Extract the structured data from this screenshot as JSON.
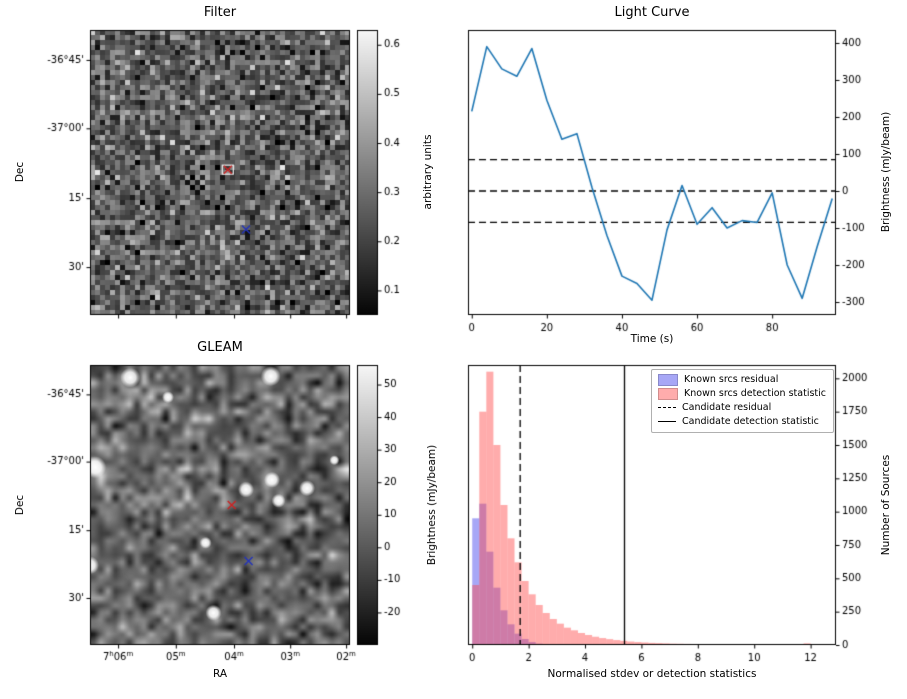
{
  "figure": {
    "background": "#ffffff"
  },
  "chart_data": [
    {
      "id": "filter",
      "type": "heatmap",
      "title": "Filter",
      "ylabel": "Dec",
      "yticks": {
        "labels": [
          "-36°45'",
          "-37°00'",
          "15'",
          "30'"
        ],
        "fractions": [
          0.105,
          0.345,
          0.59,
          0.832
        ]
      },
      "xticks": {
        "labels": [
          "",
          "",
          "",
          "",
          ""
        ],
        "fractions": [
          0.108,
          0.33,
          0.554,
          0.77,
          0.985
        ]
      },
      "value_range": [
        0.05,
        0.63
      ],
      "noise": {
        "seed": 7,
        "cells": 52,
        "mean": 0.27,
        "sd": 0.09,
        "smooth": false
      },
      "colorbar": {
        "label": "arbitrary units",
        "ticks": [
          0.1,
          0.2,
          0.3,
          0.4,
          0.5,
          0.6
        ]
      },
      "markers": [
        {
          "shape": "x",
          "color": "#cc2222",
          "x": 0.53,
          "y": 0.49,
          "boxed": true
        },
        {
          "shape": "x",
          "color": "#2233bb",
          "x": 0.6,
          "y": 0.7,
          "boxed": false
        }
      ]
    },
    {
      "id": "light_curve",
      "type": "line",
      "title": "Light Curve",
      "xlabel": "Time (s)",
      "ylabel": "Brightness (mJy/beam)",
      "line_color": "#1f77b4",
      "x": [
        0,
        4,
        8,
        12,
        16,
        20,
        24,
        28,
        32,
        36,
        40,
        44,
        48,
        52,
        56,
        60,
        64,
        68,
        72,
        76,
        80,
        84,
        88,
        92,
        96
      ],
      "y": [
        215,
        390,
        330,
        310,
        385,
        245,
        140,
        155,
        10,
        -120,
        -230,
        -250,
        -295,
        -105,
        15,
        -90,
        -45,
        -100,
        -80,
        -85,
        -5,
        -200,
        -290,
        -150,
        -20
      ],
      "hlines": {
        "style": "dashed",
        "values": [
          85,
          0,
          -85
        ]
      },
      "xlim": [
        -1,
        97
      ],
      "ylim": [
        -335,
        435
      ],
      "xticks": [
        0,
        20,
        40,
        60,
        80
      ],
      "yticks": [
        400,
        300,
        200,
        100,
        0,
        -100,
        -200,
        -300
      ]
    },
    {
      "id": "gleam",
      "type": "heatmap",
      "title": "GLEAM",
      "xlabel": "RA",
      "ylabel": "Dec",
      "yticks": {
        "labels": [
          "-36°45'",
          "-37°00'",
          "15'",
          "30'"
        ],
        "fractions": [
          0.105,
          0.345,
          0.59,
          0.832
        ]
      },
      "xticks": {
        "labels": [
          "7h06m",
          "05m",
          "04m",
          "03m",
          "02m"
        ],
        "fractions": [
          0.108,
          0.33,
          0.554,
          0.77,
          0.985
        ]
      },
      "value_range": [
        -30,
        56
      ],
      "noise": {
        "seed": 11,
        "cells": 36,
        "mean": 5,
        "sd": 13,
        "smooth": true
      },
      "colorbar": {
        "label": "Brightness (mJy/beam)",
        "ticks": [
          50,
          40,
          30,
          20,
          10,
          0,
          -10,
          -20
        ]
      },
      "sources": [
        {
          "x": 0.155,
          "y": 0.045,
          "r": 10
        },
        {
          "x": 0.3,
          "y": 0.115,
          "r": 6
        },
        {
          "x": 0.695,
          "y": 0.04,
          "r": 10
        },
        {
          "x": 0.02,
          "y": 0.365,
          "r": 11
        },
        {
          "x": 0.0,
          "y": 0.715,
          "r": 9
        },
        {
          "x": 0.6,
          "y": 0.445,
          "r": 8
        },
        {
          "x": 0.7,
          "y": 0.41,
          "r": 8
        },
        {
          "x": 0.725,
          "y": 0.485,
          "r": 7
        },
        {
          "x": 0.835,
          "y": 0.44,
          "r": 8
        },
        {
          "x": 0.445,
          "y": 0.635,
          "r": 6
        },
        {
          "x": 0.475,
          "y": 0.885,
          "r": 8
        },
        {
          "x": 0.94,
          "y": 0.34,
          "r": 5
        }
      ],
      "markers": [
        {
          "shape": "x",
          "color": "#cc2222",
          "x": 0.545,
          "y": 0.5,
          "boxed": false
        },
        {
          "shape": "x",
          "color": "#2233bb",
          "x": 0.61,
          "y": 0.7,
          "boxed": false
        }
      ]
    },
    {
      "id": "histogram",
      "type": "bar",
      "xlabel": "Normalised stdev or detection statistics",
      "ylabel": "Number of Sources",
      "bin_start": 0,
      "bin_width": 0.25,
      "series": [
        {
          "name": "Known srcs residual",
          "color": "rgba(60,60,235,0.45)",
          "values": [
            950,
            1060,
            700,
            430,
            260,
            155,
            85,
            45,
            22,
            10,
            5,
            2,
            1,
            0,
            0,
            0,
            0,
            0,
            0,
            0,
            0,
            0,
            0,
            0,
            0,
            0,
            0,
            0,
            0,
            0,
            0,
            0,
            0,
            0,
            0,
            0,
            0,
            0,
            0,
            0,
            0,
            0,
            0,
            0,
            0,
            0,
            0,
            0,
            0,
            0,
            0,
            0
          ]
        },
        {
          "name": "Known srcs detection statistic",
          "color": "rgba(255,70,70,0.45)",
          "values": [
            450,
            1750,
            2050,
            1500,
            1050,
            800,
            620,
            480,
            380,
            300,
            240,
            195,
            160,
            130,
            110,
            90,
            75,
            62,
            52,
            44,
            37,
            31,
            26,
            22,
            19,
            16,
            14,
            12,
            10,
            9,
            8,
            7,
            6,
            5,
            5,
            4,
            4,
            3,
            3,
            3,
            2,
            2,
            2,
            2,
            1,
            1,
            1,
            12,
            0,
            0,
            0,
            0
          ]
        }
      ],
      "vlines": [
        {
          "label": "Candidate residual",
          "style": "dashed",
          "x": 1.7
        },
        {
          "label": "Candidate detection statistic",
          "style": "solid",
          "x": 5.4
        }
      ],
      "xlim": [
        -0.15,
        12.9
      ],
      "ylim": [
        0,
        2100
      ],
      "xticks": [
        0,
        2,
        4,
        6,
        8,
        10,
        12
      ],
      "yticks": [
        0,
        250,
        500,
        750,
        1000,
        1250,
        1500,
        1750,
        2000
      ],
      "legend": {
        "items": [
          {
            "type": "patch",
            "color": "rgba(60,60,235,0.45)",
            "label": "Known srcs residual"
          },
          {
            "type": "patch",
            "color": "rgba(255,70,70,0.45)",
            "label": "Known srcs detection statistic"
          },
          {
            "type": "line-dashed",
            "label": "Candidate residual"
          },
          {
            "type": "line-solid",
            "label": "Candidate detection statistic"
          }
        ]
      }
    }
  ]
}
